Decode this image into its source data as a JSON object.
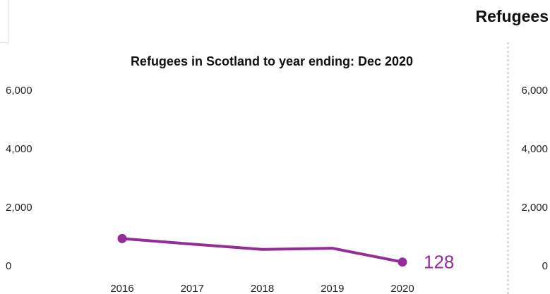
{
  "side_panel": {
    "title": "Refugees",
    "y_ticks": [
      "6,000",
      "4,000",
      "2,000",
      "0"
    ]
  },
  "colors": {
    "series": "#952d98",
    "text": "#111111"
  },
  "chart_data": {
    "type": "line",
    "title": "Refugees in Scotland to year ending:  Dec 2020",
    "xlabel": "",
    "ylabel": "",
    "x": [
      "2016",
      "2017",
      "2018",
      "2019",
      "2020"
    ],
    "series": [
      {
        "values": [
          930,
          740,
          560,
          600,
          128
        ]
      }
    ],
    "ylim": [
      0,
      6000
    ],
    "y_ticks": [
      0,
      2000,
      4000,
      6000
    ],
    "y_tick_labels": [
      "0",
      "2,000",
      "4,000",
      "6,000"
    ],
    "end_label": "128",
    "grid": false,
    "markers": "first-and-last"
  }
}
